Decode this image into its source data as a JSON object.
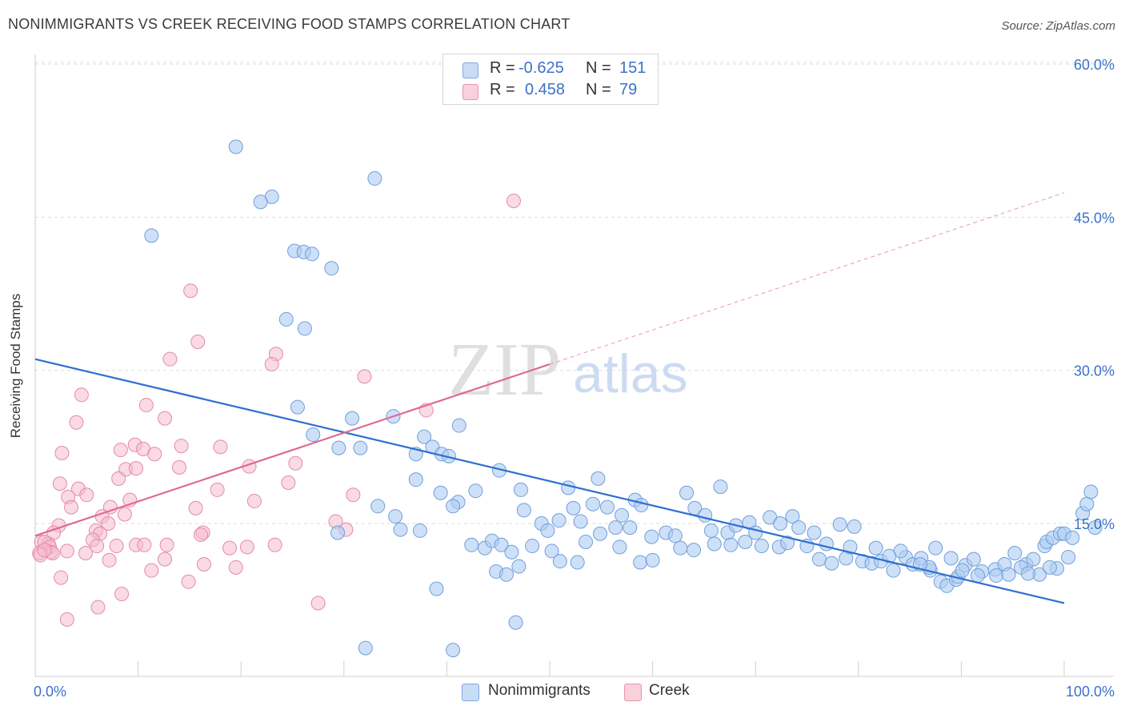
{
  "title": "NONIMMIGRANTS VS CREEK RECEIVING FOOD STAMPS CORRELATION CHART",
  "source": "Source: ZipAtlas.com",
  "watermark": {
    "zip": "ZIP",
    "atlas": "atlas"
  },
  "legend_top": {
    "rows": [
      {
        "r_label": "R =",
        "r_value": "-0.625",
        "n_label": "N =",
        "n_value": "151",
        "color": "#aecbf2"
      },
      {
        "r_label": "R =",
        "r_value": "0.458",
        "n_label": "N =",
        "n_value": "79",
        "color": "#f6bccd"
      }
    ]
  },
  "legend_bottom": [
    {
      "label": "Nonimmigrants",
      "color": "#aecbf2"
    },
    {
      "label": "Creek",
      "color": "#f6bccd"
    }
  ],
  "chart_data": {
    "type": "scatter",
    "xlabel": "",
    "ylabel": "Receiving Food Stamps",
    "xlim": [
      0,
      100
    ],
    "ylim": [
      0,
      61
    ],
    "x_tick_labels": [
      "0.0%",
      "100.0%"
    ],
    "y_ticks": [
      15,
      30,
      45,
      60
    ],
    "y_tick_labels": [
      "15.0%",
      "30.0%",
      "45.0%",
      "60.0%"
    ],
    "grid": true,
    "colors": {
      "blue_point": "#aecbf2",
      "blue_edge": "#6f9fdc",
      "blue_line": "#2f6fcf",
      "pink_point": "#f6bccd",
      "pink_edge": "#e58aa8",
      "pink_line": "#e06b92",
      "tick_label": "#3c72c8"
    },
    "series": [
      {
        "name": "Nonimmigrants",
        "trend": {
          "x": [
            0,
            100
          ],
          "y": [
            31.1,
            7.2
          ]
        },
        "points": [
          [
            19.5,
            51.9
          ],
          [
            23.0,
            47.0
          ],
          [
            21.9,
            46.5
          ],
          [
            11.3,
            43.2
          ],
          [
            33.0,
            48.8
          ],
          [
            25.2,
            41.7
          ],
          [
            26.1,
            41.6
          ],
          [
            26.9,
            41.4
          ],
          [
            28.8,
            40.0
          ],
          [
            24.4,
            35.0
          ],
          [
            26.2,
            34.1
          ],
          [
            25.5,
            26.4
          ],
          [
            30.8,
            25.3
          ],
          [
            34.8,
            25.5
          ],
          [
            41.2,
            24.6
          ],
          [
            27.0,
            23.7
          ],
          [
            37.8,
            23.5
          ],
          [
            29.5,
            22.4
          ],
          [
            31.6,
            22.4
          ],
          [
            37.0,
            21.8
          ],
          [
            38.6,
            22.5
          ],
          [
            39.5,
            21.8
          ],
          [
            40.2,
            21.6
          ],
          [
            45.1,
            20.2
          ],
          [
            37.0,
            19.3
          ],
          [
            39.4,
            18.0
          ],
          [
            41.1,
            17.1
          ],
          [
            42.8,
            18.2
          ],
          [
            47.2,
            18.3
          ],
          [
            51.8,
            18.5
          ],
          [
            54.7,
            19.4
          ],
          [
            63.3,
            18.0
          ],
          [
            66.6,
            18.6
          ],
          [
            33.3,
            16.7
          ],
          [
            35.0,
            15.7
          ],
          [
            35.5,
            14.4
          ],
          [
            29.4,
            14.1
          ],
          [
            40.6,
            16.7
          ],
          [
            47.5,
            16.3
          ],
          [
            49.2,
            15.0
          ],
          [
            50.9,
            15.3
          ],
          [
            52.3,
            16.5
          ],
          [
            53.0,
            15.2
          ],
          [
            54.2,
            16.9
          ],
          [
            55.6,
            16.6
          ],
          [
            56.4,
            14.6
          ],
          [
            57.0,
            15.8
          ],
          [
            58.3,
            17.3
          ],
          [
            58.9,
            16.8
          ],
          [
            61.3,
            14.1
          ],
          [
            62.2,
            13.8
          ],
          [
            64.1,
            16.5
          ],
          [
            65.1,
            15.8
          ],
          [
            65.7,
            14.3
          ],
          [
            67.3,
            14.1
          ],
          [
            68.1,
            14.8
          ],
          [
            69.4,
            15.1
          ],
          [
            71.4,
            15.6
          ],
          [
            73.6,
            15.7
          ],
          [
            74.2,
            14.6
          ],
          [
            75.7,
            14.1
          ],
          [
            76.9,
            13.0
          ],
          [
            78.2,
            14.9
          ],
          [
            79.6,
            14.7
          ],
          [
            81.7,
            12.6
          ],
          [
            42.4,
            12.9
          ],
          [
            43.7,
            12.6
          ],
          [
            44.4,
            13.3
          ],
          [
            45.3,
            12.9
          ],
          [
            46.3,
            12.2
          ],
          [
            47.0,
            10.8
          ],
          [
            48.3,
            12.8
          ],
          [
            50.2,
            12.3
          ],
          [
            51.0,
            11.3
          ],
          [
            53.5,
            13.2
          ],
          [
            56.8,
            12.7
          ],
          [
            58.8,
            11.2
          ],
          [
            60.0,
            11.4
          ],
          [
            62.7,
            12.6
          ],
          [
            64.0,
            12.4
          ],
          [
            66.0,
            13.0
          ],
          [
            67.6,
            12.9
          ],
          [
            69.0,
            13.2
          ],
          [
            70.6,
            12.8
          ],
          [
            72.3,
            12.7
          ],
          [
            73.1,
            13.1
          ],
          [
            75.0,
            12.8
          ],
          [
            76.2,
            11.5
          ],
          [
            77.4,
            11.1
          ],
          [
            78.8,
            11.6
          ],
          [
            80.4,
            11.3
          ],
          [
            81.3,
            11.1
          ],
          [
            82.2,
            11.3
          ],
          [
            83.4,
            10.4
          ],
          [
            84.6,
            11.7
          ],
          [
            85.3,
            11.0
          ],
          [
            86.1,
            11.6
          ],
          [
            87.0,
            10.4
          ],
          [
            88.0,
            9.3
          ],
          [
            88.6,
            8.9
          ],
          [
            89.5,
            9.5
          ],
          [
            90.4,
            10.9
          ],
          [
            91.2,
            11.5
          ],
          [
            92.0,
            10.3
          ],
          [
            93.3,
            10.5
          ],
          [
            94.2,
            11.0
          ],
          [
            95.2,
            12.1
          ],
          [
            96.3,
            11.0
          ],
          [
            97.0,
            11.5
          ],
          [
            98.1,
            12.8
          ],
          [
            99.3,
            10.6
          ],
          [
            98.3,
            13.2
          ],
          [
            98.9,
            13.6
          ],
          [
            99.6,
            14.0
          ],
          [
            100.0,
            14.0
          ],
          [
            100.8,
            13.6
          ],
          [
            101.8,
            16.0
          ],
          [
            102.2,
            16.9
          ],
          [
            102.6,
            18.1
          ],
          [
            103.0,
            14.6
          ],
          [
            91.6,
            9.9
          ],
          [
            93.4,
            9.9
          ],
          [
            95.8,
            10.7
          ],
          [
            97.6,
            10.0
          ],
          [
            89.7,
            9.8
          ],
          [
            86.9,
            10.7
          ],
          [
            84.1,
            12.3
          ],
          [
            83.0,
            11.8
          ],
          [
            79.2,
            12.7
          ],
          [
            44.8,
            10.3
          ],
          [
            45.8,
            10.0
          ],
          [
            52.7,
            11.2
          ],
          [
            59.9,
            13.7
          ],
          [
            39.0,
            8.6
          ],
          [
            32.1,
            2.8
          ],
          [
            40.6,
            2.6
          ],
          [
            46.7,
            5.3
          ],
          [
            37.4,
            14.3
          ],
          [
            49.8,
            14.3
          ],
          [
            54.9,
            14.0
          ],
          [
            57.8,
            14.6
          ],
          [
            70.0,
            14.1
          ],
          [
            72.4,
            15.0
          ],
          [
            86.0,
            11.0
          ],
          [
            87.5,
            12.6
          ],
          [
            89.0,
            11.6
          ],
          [
            90.1,
            10.4
          ],
          [
            94.6,
            10.0
          ],
          [
            96.5,
            10.1
          ],
          [
            98.6,
            10.7
          ],
          [
            100.4,
            11.7
          ]
        ]
      },
      {
        "name": "Creek",
        "trend": {
          "x": [
            0,
            50
          ],
          "y": [
            13.8,
            30.6
          ]
        },
        "trend_extension": {
          "x": [
            50,
            100
          ],
          "y": [
            30.6,
            47.4
          ]
        },
        "points": [
          [
            46.5,
            46.6
          ],
          [
            15.1,
            37.8
          ],
          [
            15.8,
            32.8
          ],
          [
            23.4,
            31.6
          ],
          [
            23.0,
            30.6
          ],
          [
            13.1,
            31.1
          ],
          [
            32.0,
            29.4
          ],
          [
            38.0,
            26.1
          ],
          [
            4.5,
            27.6
          ],
          [
            10.8,
            26.6
          ],
          [
            12.6,
            25.3
          ],
          [
            4.0,
            24.9
          ],
          [
            9.7,
            22.7
          ],
          [
            14.2,
            22.6
          ],
          [
            18.0,
            22.5
          ],
          [
            8.3,
            22.2
          ],
          [
            10.5,
            22.3
          ],
          [
            11.6,
            21.8
          ],
          [
            2.6,
            21.9
          ],
          [
            25.3,
            20.9
          ],
          [
            20.8,
            20.6
          ],
          [
            14.0,
            20.5
          ],
          [
            8.8,
            20.3
          ],
          [
            9.8,
            20.4
          ],
          [
            24.6,
            19.0
          ],
          [
            8.1,
            19.4
          ],
          [
            2.4,
            18.9
          ],
          [
            17.7,
            18.3
          ],
          [
            30.9,
            17.8
          ],
          [
            4.2,
            18.4
          ],
          [
            5.0,
            17.8
          ],
          [
            3.2,
            17.6
          ],
          [
            21.3,
            17.2
          ],
          [
            9.2,
            17.3
          ],
          [
            3.5,
            16.6
          ],
          [
            7.3,
            16.6
          ],
          [
            15.6,
            16.5
          ],
          [
            6.5,
            15.7
          ],
          [
            8.7,
            15.9
          ],
          [
            7.1,
            15.0
          ],
          [
            2.3,
            14.8
          ],
          [
            16.3,
            14.1
          ],
          [
            5.9,
            14.3
          ],
          [
            6.3,
            14.0
          ],
          [
            1.8,
            14.1
          ],
          [
            16.1,
            13.9
          ],
          [
            5.6,
            13.4
          ],
          [
            0.6,
            13.2
          ],
          [
            1.3,
            13.0
          ],
          [
            0.9,
            13.2
          ],
          [
            1.4,
            12.7
          ],
          [
            6.0,
            12.8
          ],
          [
            9.8,
            12.9
          ],
          [
            10.6,
            12.9
          ],
          [
            12.8,
            12.9
          ],
          [
            18.9,
            12.6
          ],
          [
            20.6,
            12.7
          ],
          [
            23.3,
            12.9
          ],
          [
            7.9,
            12.8
          ],
          [
            3.1,
            12.3
          ],
          [
            4.9,
            12.1
          ],
          [
            1.5,
            12.2
          ],
          [
            1.7,
            12.1
          ],
          [
            0.4,
            12.1
          ],
          [
            0.5,
            11.9
          ],
          [
            0.9,
            12.4
          ],
          [
            7.2,
            11.4
          ],
          [
            12.6,
            11.5
          ],
          [
            16.4,
            11.0
          ],
          [
            19.5,
            10.7
          ],
          [
            11.3,
            10.4
          ],
          [
            2.5,
            9.7
          ],
          [
            14.9,
            9.3
          ],
          [
            8.4,
            8.1
          ],
          [
            27.5,
            7.2
          ],
          [
            6.1,
            6.8
          ],
          [
            3.1,
            5.6
          ],
          [
            30.2,
            14.4
          ],
          [
            29.2,
            15.2
          ]
        ]
      }
    ]
  }
}
